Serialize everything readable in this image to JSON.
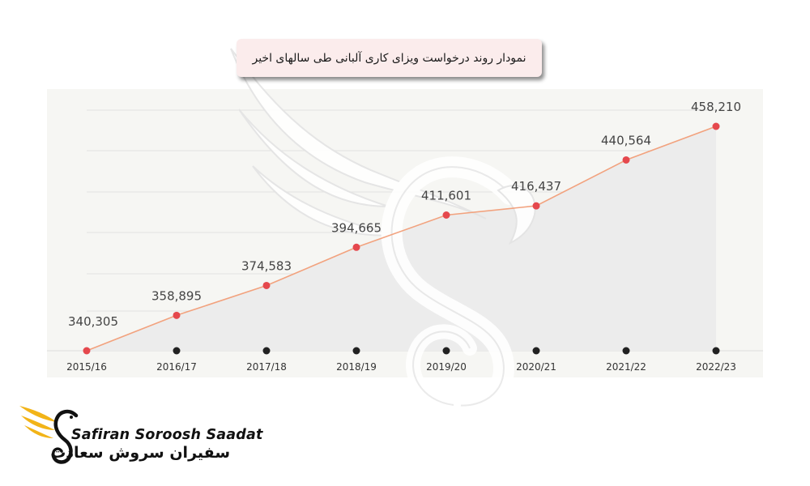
{
  "title": "نمودار روند درخواست ویزای کاری آلبانی طی سالهای اخیر",
  "logo": {
    "name_en": "Safiran Soroosh Saadat",
    "name_fa": "سفیران سروش سعادت"
  },
  "colors": {
    "line": "#f2a27e",
    "marker": "#e5484d",
    "area": "#ececec",
    "panel": "#f6f6f3",
    "grid": "#e2e2e0",
    "title_bg": "#fbecec"
  },
  "chart_data": {
    "type": "area",
    "categories": [
      "2015/16",
      "2016/17",
      "2017/18",
      "2018/19",
      "2019/20",
      "2020/21",
      "2021/22",
      "2022/23"
    ],
    "values": [
      340305,
      358895,
      374583,
      394665,
      411601,
      416437,
      440564,
      458210
    ],
    "labels": [
      "340,305",
      "358,895",
      "374,583",
      "394,665",
      "411,601",
      "416,437",
      "440,564",
      "458,210"
    ],
    "ylim": [
      340305,
      458210
    ],
    "grid": true,
    "legend": "none"
  }
}
